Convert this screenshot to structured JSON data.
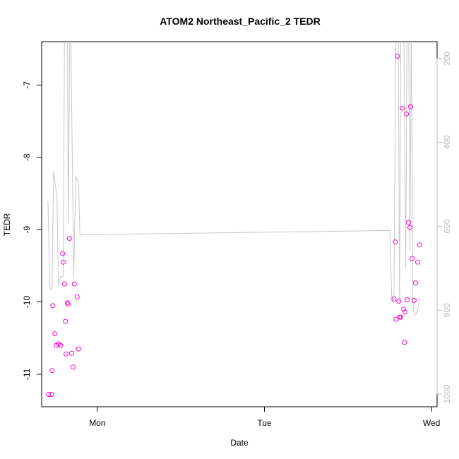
{
  "chart_data": {
    "type": "scatter",
    "title": "ATOM2 Northeast_Pacific_2 TEDR",
    "xlabel": "Date",
    "ylabel": "TEDR",
    "x_axis": {
      "ticks": [
        {
          "x": 24,
          "label": "Mon"
        },
        {
          "x": 48,
          "label": "Tue"
        },
        {
          "x": 72,
          "label": "Wed"
        }
      ],
      "range": [
        16,
        72.8
      ]
    },
    "y_axis": {
      "ticks": [
        {
          "v": -11,
          "label": "-11"
        },
        {
          "v": -10,
          "label": "-10"
        },
        {
          "v": -9,
          "label": "-9"
        },
        {
          "v": -8,
          "label": "-8"
        },
        {
          "v": -7,
          "label": "-7"
        }
      ],
      "range": [
        -11.45,
        -6.4
      ]
    },
    "y2_axis": {
      "reversed": true,
      "color": "#bbbbbb",
      "ticks": [
        {
          "v": 200,
          "label": "200"
        },
        {
          "v": 400,
          "label": "400"
        },
        {
          "v": 600,
          "label": "600"
        },
        {
          "v": 800,
          "label": "800"
        },
        {
          "v": 1000,
          "label": "1000"
        }
      ],
      "range": [
        1030,
        160
      ]
    },
    "grid": false,
    "series": [
      {
        "kind": "points",
        "axis": "left",
        "color": "#ff00cc",
        "marker": "open-circle",
        "points": [
          [
            17.0,
            -11.28
          ],
          [
            17.4,
            -11.28
          ],
          [
            17.5,
            -10.95
          ],
          [
            17.6,
            -10.05
          ],
          [
            17.9,
            -10.44
          ],
          [
            18.1,
            -10.6
          ],
          [
            18.4,
            -10.58
          ],
          [
            18.7,
            -10.6
          ],
          [
            19.0,
            -9.33
          ],
          [
            19.1,
            -9.45
          ],
          [
            19.3,
            -9.75
          ],
          [
            19.4,
            -10.27
          ],
          [
            19.5,
            -10.72
          ],
          [
            19.7,
            -10.01
          ],
          [
            19.8,
            -10.03
          ],
          [
            20.0,
            -9.12
          ],
          [
            20.3,
            -10.71
          ],
          [
            20.5,
            -10.9
          ],
          [
            20.7,
            -9.75
          ],
          [
            21.1,
            -9.93
          ],
          [
            21.3,
            -10.65
          ],
          [
            66.6,
            -9.96
          ],
          [
            66.8,
            -9.17
          ],
          [
            66.9,
            -10.24
          ],
          [
            67.1,
            -6.6
          ],
          [
            67.3,
            -9.99
          ],
          [
            67.4,
            -10.21
          ],
          [
            67.6,
            -10.21
          ],
          [
            67.8,
            -7.32
          ],
          [
            68.0,
            -10.1
          ],
          [
            68.1,
            -10.56
          ],
          [
            68.2,
            -10.14
          ],
          [
            68.4,
            -7.4
          ],
          [
            68.5,
            -9.97
          ],
          [
            68.7,
            -8.9
          ],
          [
            68.9,
            -8.97
          ],
          [
            69.0,
            -7.3
          ],
          [
            69.2,
            -9.4
          ],
          [
            69.5,
            -9.98
          ],
          [
            69.7,
            -9.74
          ],
          [
            70.0,
            -9.45
          ],
          [
            70.3,
            -9.21
          ]
        ]
      },
      {
        "kind": "line",
        "axis": "right",
        "color": "#c8c8c8",
        "points": [
          [
            16.9,
            540
          ],
          [
            17.2,
            750
          ],
          [
            17.5,
            750
          ],
          [
            17.7,
            470
          ],
          [
            18.2,
            530
          ],
          [
            18.4,
            740
          ],
          [
            18.7,
            720
          ],
          [
            19.1,
            720
          ],
          [
            19.3,
            80
          ],
          [
            19.7,
            80
          ],
          [
            19.8,
            590
          ],
          [
            20.1,
            40
          ],
          [
            20.3,
            300
          ],
          [
            20.6,
            720
          ],
          [
            20.9,
            480
          ],
          [
            21.3,
            500
          ],
          [
            21.5,
            620
          ],
          [
            66.0,
            610
          ],
          [
            66.3,
            780
          ],
          [
            66.6,
            760
          ],
          [
            66.9,
            80
          ],
          [
            67.2,
            80
          ],
          [
            67.4,
            780
          ],
          [
            67.6,
            120
          ],
          [
            67.8,
            140
          ],
          [
            68.0,
            80
          ],
          [
            68.3,
            700
          ],
          [
            68.5,
            80
          ],
          [
            68.7,
            90
          ],
          [
            68.9,
            660
          ],
          [
            69.1,
            100
          ],
          [
            69.3,
            780
          ],
          [
            69.5,
            810
          ],
          [
            69.8,
            810
          ],
          [
            70.1,
            790
          ],
          [
            70.3,
            770
          ]
        ]
      }
    ]
  }
}
